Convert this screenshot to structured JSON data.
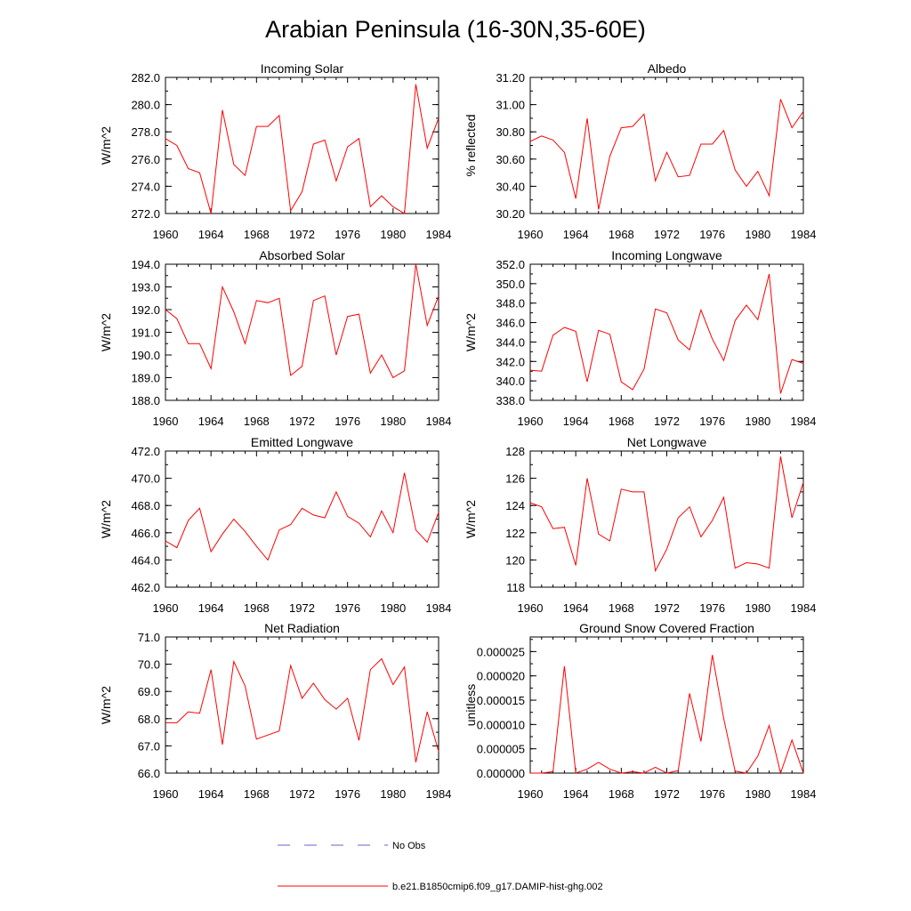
{
  "title": "Arabian Peninsula (16-30N,35-60E)",
  "legend": {
    "placement": "bottom-center",
    "entries": [
      {
        "label": "No Obs",
        "color": "#6666cc",
        "style": "dashed"
      },
      {
        "label": "b.e21.B1850cmip6.f09_g17.DAMIP-hist-ghg.002",
        "color": "#ff0000",
        "style": "solid"
      }
    ]
  },
  "chart_data": [
    {
      "type": "line",
      "title": "Incoming Solar",
      "ylabel": "W/m^2",
      "x": [
        1960,
        1961,
        1962,
        1963,
        1964,
        1965,
        1966,
        1967,
        1968,
        1969,
        1970,
        1971,
        1972,
        1973,
        1974,
        1975,
        1976,
        1977,
        1978,
        1979,
        1980,
        1981,
        1982,
        1983,
        1984
      ],
      "xlim": [
        1960,
        1984
      ],
      "xticks": [
        "1960",
        "1964",
        "1968",
        "1972",
        "1976",
        "1980",
        "1984"
      ],
      "ylim": [
        272,
        282
      ],
      "yticks": [
        "272.0",
        "274.0",
        "276.0",
        "278.0",
        "280.0",
        "282.0"
      ],
      "yminor": 1,
      "series": [
        {
          "color": "#ff0000",
          "values": [
            277.5,
            277.0,
            275.3,
            275.0,
            272.0,
            279.6,
            275.6,
            274.8,
            278.4,
            278.4,
            279.2,
            272.2,
            273.6,
            277.1,
            277.4,
            274.4,
            276.9,
            277.5,
            272.5,
            273.3,
            272.5,
            272.0,
            281.5,
            276.8,
            279.0
          ]
        }
      ]
    },
    {
      "type": "line",
      "title": "Albedo",
      "ylabel": "% reflected",
      "x": [
        1960,
        1961,
        1962,
        1963,
        1964,
        1965,
        1966,
        1967,
        1968,
        1969,
        1970,
        1971,
        1972,
        1973,
        1974,
        1975,
        1976,
        1977,
        1978,
        1979,
        1980,
        1981,
        1982,
        1983,
        1984
      ],
      "xlim": [
        1960,
        1984
      ],
      "xticks": [
        "1960",
        "1964",
        "1968",
        "1972",
        "1976",
        "1980",
        "1984"
      ],
      "ylim": [
        30.2,
        31.2
      ],
      "yticks": [
        "30.20",
        "30.40",
        "30.60",
        "30.80",
        "31.00",
        "31.20"
      ],
      "yminor": 0.1,
      "series": [
        {
          "color": "#ff0000",
          "values": [
            30.73,
            30.77,
            30.74,
            30.65,
            30.31,
            30.9,
            30.23,
            30.62,
            30.83,
            30.84,
            30.93,
            30.44,
            30.65,
            30.47,
            30.48,
            30.71,
            30.71,
            30.81,
            30.52,
            30.4,
            30.51,
            30.33,
            31.04,
            30.83,
            30.95
          ]
        }
      ]
    },
    {
      "type": "line",
      "title": "Absorbed Solar",
      "ylabel": "W/m^2",
      "x": [
        1960,
        1961,
        1962,
        1963,
        1964,
        1965,
        1966,
        1967,
        1968,
        1969,
        1970,
        1971,
        1972,
        1973,
        1974,
        1975,
        1976,
        1977,
        1978,
        1979,
        1980,
        1981,
        1982,
        1983,
        1984
      ],
      "xlim": [
        1960,
        1984
      ],
      "xticks": [
        "1960",
        "1964",
        "1968",
        "1972",
        "1976",
        "1980",
        "1984"
      ],
      "ylim": [
        188,
        194
      ],
      "yticks": [
        "188.0",
        "189.0",
        "190.0",
        "191.0",
        "192.0",
        "193.0",
        "194.0"
      ],
      "yminor": 0.5,
      "series": [
        {
          "color": "#ff0000",
          "values": [
            192.0,
            191.6,
            190.5,
            190.5,
            189.4,
            193.0,
            191.9,
            190.5,
            192.4,
            192.3,
            192.5,
            189.1,
            189.5,
            192.4,
            192.6,
            190.0,
            191.7,
            191.8,
            189.2,
            190.0,
            189.0,
            189.3,
            194.0,
            191.3,
            192.6
          ]
        }
      ]
    },
    {
      "type": "line",
      "title": "Incoming Longwave",
      "ylabel": "W/m^2",
      "x": [
        1960,
        1961,
        1962,
        1963,
        1964,
        1965,
        1966,
        1967,
        1968,
        1969,
        1970,
        1971,
        1972,
        1973,
        1974,
        1975,
        1976,
        1977,
        1978,
        1979,
        1980,
        1981,
        1982,
        1983,
        1984
      ],
      "xlim": [
        1960,
        1984
      ],
      "xticks": [
        "1960",
        "1964",
        "1968",
        "1972",
        "1976",
        "1980",
        "1984"
      ],
      "ylim": [
        338,
        352
      ],
      "yticks": [
        "338.0",
        "340.0",
        "342.0",
        "344.0",
        "346.0",
        "348.0",
        "350.0",
        "352.0"
      ],
      "yminor": 1,
      "series": [
        {
          "color": "#ff0000",
          "values": [
            341.1,
            341.0,
            344.7,
            345.5,
            345.1,
            339.9,
            345.2,
            344.8,
            339.9,
            339.1,
            341.2,
            347.4,
            347.0,
            344.2,
            343.2,
            347.3,
            344.3,
            342.1,
            346.2,
            347.8,
            346.3,
            351.0,
            338.7,
            342.2,
            341.8
          ]
        }
      ]
    },
    {
      "type": "line",
      "title": "Emitted Longwave",
      "ylabel": "W/m^2",
      "x": [
        1960,
        1961,
        1962,
        1963,
        1964,
        1965,
        1966,
        1967,
        1968,
        1969,
        1970,
        1971,
        1972,
        1973,
        1974,
        1975,
        1976,
        1977,
        1978,
        1979,
        1980,
        1981,
        1982,
        1983,
        1984
      ],
      "xlim": [
        1960,
        1984
      ],
      "xticks": [
        "1960",
        "1964",
        "1968",
        "1972",
        "1976",
        "1980",
        "1984"
      ],
      "ylim": [
        462,
        472
      ],
      "yticks": [
        "462.0",
        "464.0",
        "466.0",
        "468.0",
        "470.0",
        "472.0"
      ],
      "yminor": 1,
      "series": [
        {
          "color": "#ff0000",
          "values": [
            465.4,
            464.9,
            466.9,
            467.8,
            464.6,
            465.9,
            467.0,
            466.1,
            465.0,
            464.0,
            466.2,
            466.6,
            467.8,
            467.3,
            467.1,
            469.0,
            467.2,
            466.7,
            465.7,
            467.6,
            466.0,
            470.4,
            466.2,
            465.3,
            467.5
          ]
        }
      ]
    },
    {
      "type": "line",
      "title": "Net Longwave",
      "ylabel": "W/m^2",
      "x": [
        1960,
        1961,
        1962,
        1963,
        1964,
        1965,
        1966,
        1967,
        1968,
        1969,
        1970,
        1971,
        1972,
        1973,
        1974,
        1975,
        1976,
        1977,
        1978,
        1979,
        1980,
        1981,
        1982,
        1983,
        1984
      ],
      "xlim": [
        1960,
        1984
      ],
      "xticks": [
        "1960",
        "1964",
        "1968",
        "1972",
        "1976",
        "1980",
        "1984"
      ],
      "ylim": [
        118,
        128
      ],
      "yticks": [
        "118",
        "120",
        "122",
        "124",
        "126",
        "128"
      ],
      "yminor": 1,
      "series": [
        {
          "color": "#ff0000",
          "values": [
            124.2,
            123.9,
            122.3,
            122.4,
            119.6,
            126.0,
            121.9,
            121.4,
            125.2,
            125.0,
            125.0,
            119.2,
            120.8,
            123.1,
            123.9,
            121.7,
            122.9,
            124.6,
            119.4,
            119.8,
            119.7,
            119.4,
            127.6,
            123.1,
            125.7
          ]
        }
      ]
    },
    {
      "type": "line",
      "title": "Net Radiation",
      "ylabel": "W/m^2",
      "x": [
        1960,
        1961,
        1962,
        1963,
        1964,
        1965,
        1966,
        1967,
        1968,
        1969,
        1970,
        1971,
        1972,
        1973,
        1974,
        1975,
        1976,
        1977,
        1978,
        1979,
        1980,
        1981,
        1982,
        1983,
        1984
      ],
      "xlim": [
        1960,
        1984
      ],
      "xticks": [
        "1960",
        "1964",
        "1968",
        "1972",
        "1976",
        "1980",
        "1984"
      ],
      "ylim": [
        66,
        71
      ],
      "yticks": [
        "66.0",
        "67.0",
        "68.0",
        "69.0",
        "70.0",
        "71.0"
      ],
      "yminor": 0.5,
      "series": [
        {
          "color": "#ff0000",
          "values": [
            67.85,
            67.85,
            68.25,
            68.2,
            69.8,
            67.05,
            70.1,
            69.2,
            67.25,
            67.4,
            67.55,
            69.95,
            68.75,
            69.3,
            68.7,
            68.35,
            68.75,
            67.2,
            69.8,
            70.2,
            69.25,
            69.9,
            66.4,
            68.25,
            66.8
          ]
        }
      ]
    },
    {
      "type": "line",
      "title": "Ground Snow Covered Fraction",
      "ylabel": "unitless",
      "x": [
        1960,
        1961,
        1962,
        1963,
        1964,
        1965,
        1966,
        1967,
        1968,
        1969,
        1970,
        1971,
        1972,
        1973,
        1974,
        1975,
        1976,
        1977,
        1978,
        1979,
        1980,
        1981,
        1982,
        1983,
        1984
      ],
      "xlim": [
        1960,
        1984
      ],
      "xticks": [
        "1960",
        "1964",
        "1968",
        "1972",
        "1976",
        "1980",
        "1984"
      ],
      "ylim": [
        0,
        2.8e-05
      ],
      "yticks": [
        "0.000000",
        "0.000005",
        "0.000010",
        "0.000015",
        "0.000020",
        "0.000025"
      ],
      "yminor": 2.5e-06,
      "series": [
        {
          "color": "#ff0000",
          "values": [
            0.0,
            0.0,
            3e-07,
            2.2e-05,
            0.0,
            8e-07,
            2.2e-06,
            8e-07,
            0.0,
            3e-07,
            0.0,
            1.2e-06,
            0.0,
            5e-07,
            1.64e-05,
            6.5e-06,
            2.43e-05,
            1.12e-05,
            4e-07,
            0.0,
            3.5e-06,
            9.8e-06,
            0.0,
            6.8e-06,
            0.0
          ]
        }
      ]
    }
  ]
}
